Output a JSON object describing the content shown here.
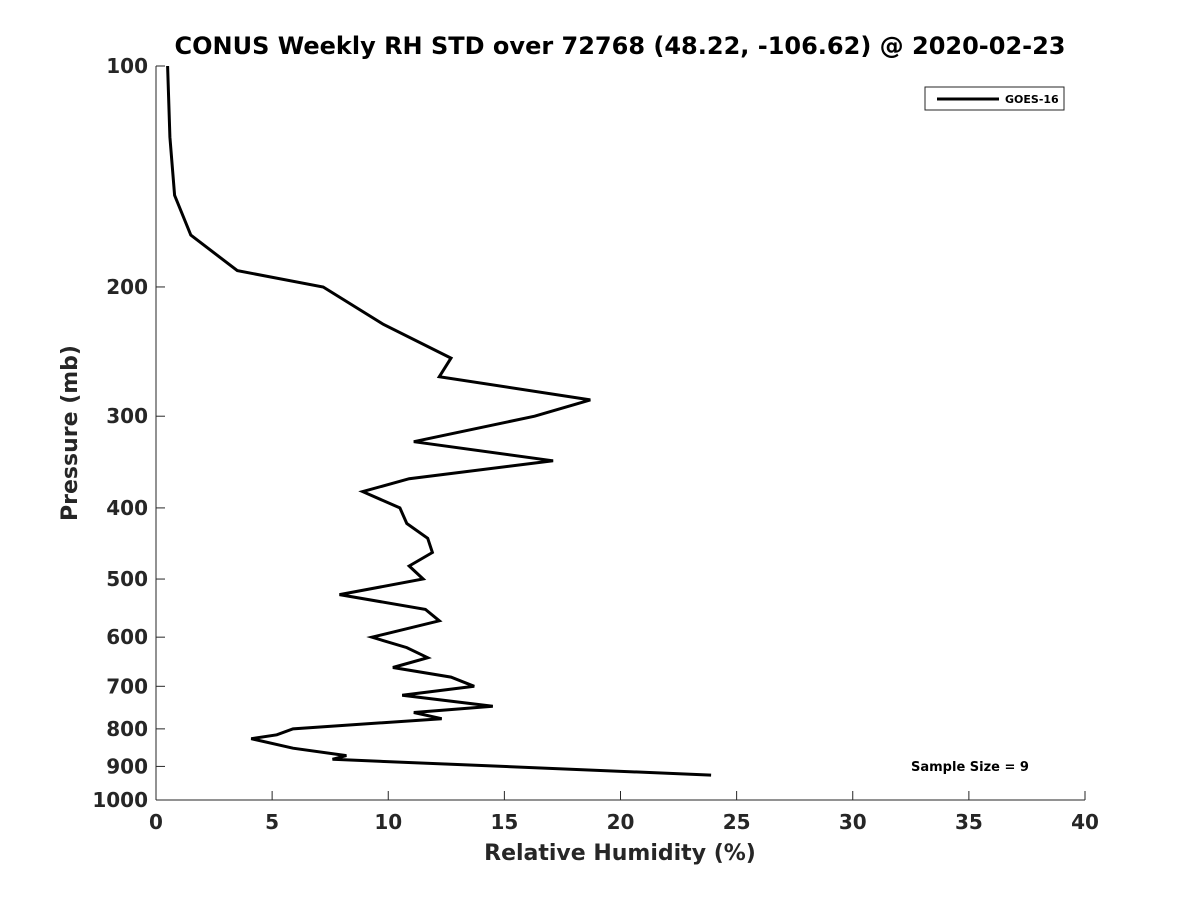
{
  "chart_data": {
    "type": "line",
    "title": "CONUS Weekly RH STD over 72768 (48.22, -106.62) @ 2020-02-23",
    "xlabel": "Relative Humidity (%)",
    "ylabel": "Pressure (mb)",
    "xlim": [
      0,
      40
    ],
    "ylim": [
      100,
      1000
    ],
    "y_scale": "log",
    "y_reversed": true,
    "x_ticks": [
      "0",
      "5",
      "10",
      "15",
      "20",
      "25",
      "30",
      "35",
      "40"
    ],
    "y_ticks": [
      "100",
      "200",
      "300",
      "400",
      "500",
      "600",
      "700",
      "800",
      "900",
      "1000"
    ],
    "grid": false,
    "legend_position": "top-right",
    "annotation": "Sample Size = 9",
    "series": [
      {
        "name": "GOES-16",
        "color": "#000000",
        "points": [
          [
            0.5,
            100
          ],
          [
            0.6,
            125
          ],
          [
            0.8,
            150
          ],
          [
            1.5,
            170
          ],
          [
            3.5,
            190
          ],
          [
            7.2,
            200
          ],
          [
            9.8,
            225
          ],
          [
            12.7,
            250
          ],
          [
            12.2,
            265
          ],
          [
            18.7,
            285
          ],
          [
            16.3,
            300
          ],
          [
            11.1,
            325
          ],
          [
            17.1,
            345
          ],
          [
            10.9,
            365
          ],
          [
            8.9,
            380
          ],
          [
            10.5,
            400
          ],
          [
            10.8,
            420
          ],
          [
            11.7,
            440
          ],
          [
            11.9,
            460
          ],
          [
            10.9,
            480
          ],
          [
            11.5,
            500
          ],
          [
            7.9,
            525
          ],
          [
            11.6,
            550
          ],
          [
            12.2,
            570
          ],
          [
            9.3,
            600
          ],
          [
            10.8,
            620
          ],
          [
            11.7,
            640
          ],
          [
            10.2,
            660
          ],
          [
            12.7,
            680
          ],
          [
            13.7,
            700
          ],
          [
            10.6,
            720
          ],
          [
            14.5,
            745
          ],
          [
            11.1,
            760
          ],
          [
            12.3,
            775
          ],
          [
            5.9,
            800
          ],
          [
            5.2,
            815
          ],
          [
            4.1,
            825
          ],
          [
            5.9,
            850
          ],
          [
            8.2,
            870
          ],
          [
            7.6,
            880
          ],
          [
            23.9,
            925
          ]
        ]
      }
    ]
  }
}
